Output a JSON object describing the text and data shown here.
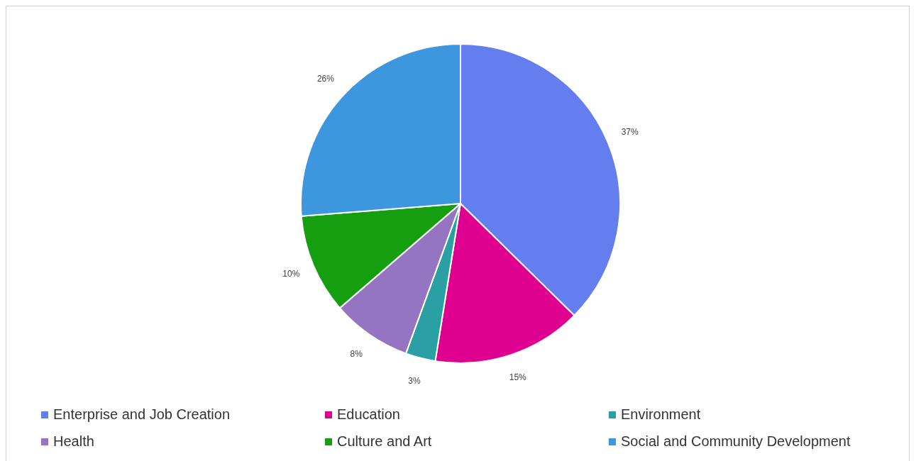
{
  "chart_data": {
    "type": "pie",
    "categories": [
      "Enterprise and Job Creation",
      "Education",
      "Environment",
      "Health",
      "Culture and Art",
      "Social and Community Development"
    ],
    "values": [
      37,
      15,
      3,
      8,
      10,
      26
    ],
    "colors": [
      "#647ef0",
      "#e0008f",
      "#2aa0a4",
      "#9575c2",
      "#159e10",
      "#3c97de"
    ],
    "value_labels": [
      "37%",
      "15%",
      "3%",
      "8%",
      "10%",
      "26%"
    ],
    "legend": "bottom"
  }
}
